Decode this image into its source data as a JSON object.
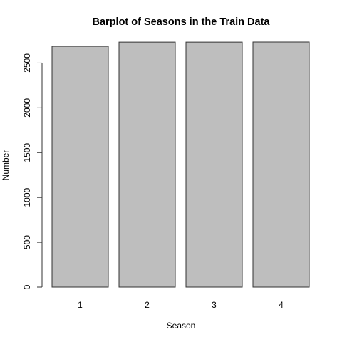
{
  "chart_data": {
    "type": "bar",
    "title": "Barplot of Seasons in the Train Data",
    "xlabel": "Season",
    "ylabel": "Number",
    "categories": [
      "1",
      "2",
      "3",
      "4"
    ],
    "values": [
      2686,
      2733,
      2733,
      2734
    ],
    "ylim": [
      0,
      2734
    ],
    "yticks": [
      0,
      500,
      1000,
      1500,
      2000,
      2500
    ],
    "bar_color": "#bebebe",
    "bar_border_color": "#333333",
    "grid": false,
    "legend": "none"
  }
}
